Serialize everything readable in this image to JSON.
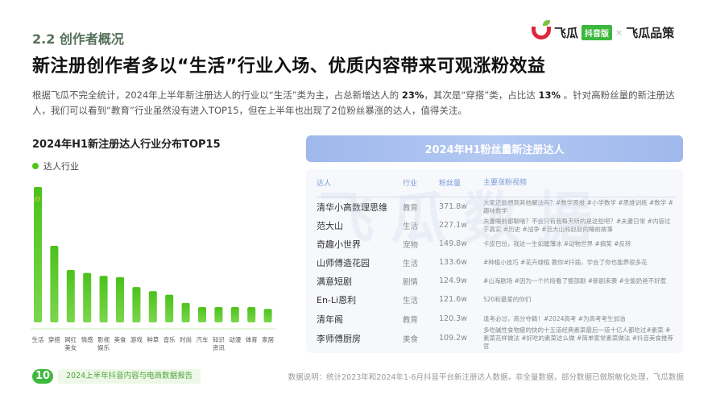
{
  "section": "2.2 创作者概况",
  "title": "新注册创作者多以“生活”行业入场、优质内容带来可观涨粉效益",
  "intro": {
    "p1": "根据飞瓜不完全统计，2024年上半年新注册达人的行业以“生活”类为主，占总新增达人的 ",
    "v1": "23%",
    "p2": "，其次是“穿搭”类，占比达 ",
    "v2": "13%",
    "p3": " 。针对高粉丝量的新注册达人，我们可以看到“教育”行业虽然没有进入TOP15，但在上半年也出现了2位粉丝暴涨的达人，值得关注。"
  },
  "logo": {
    "brand": "飞瓜",
    "tag": "抖音版",
    "sep": "×",
    "partner": "飞瓜品策"
  },
  "chart_data": {
    "type": "bar",
    "title": "2024年H1新注册达人行业分布TOP15",
    "legend": "达人行业",
    "legend_color": "#52c41a",
    "categories": [
      "生活",
      "穿搭",
      "网红\n美女",
      "情感",
      "影视\n娱乐",
      "美食",
      "游戏",
      "种草",
      "音乐",
      "时尚",
      "汽车",
      "知识\n资讯",
      "动漫",
      "体育",
      "家居"
    ],
    "values": [
      23,
      13,
      8.9,
      8.4,
      7.9,
      7.7,
      6.0,
      5.3,
      4.7,
      3.3,
      2.6,
      2.6,
      2.6,
      2.6,
      2.3
    ],
    "axis_break_on_first_bar": true
  },
  "panel": {
    "title": "2024年H1粉丝量新注册达人",
    "watermark": "飞瓜数据",
    "headers": [
      "达人",
      "行业",
      "粉丝量",
      "主要涨粉视频"
    ],
    "rows": [
      [
        "清华小高数理思维",
        "教育",
        "371.8w",
        "大家还能想到其他解法吗？#数学思维 #小学数学 #思维训练 #数学 #趣味数学"
      ],
      [
        "范大山",
        "生活",
        "227.1w",
        "夫妻睡前都聊啥？不会只有我每天听的是这些吧？#夫妻日常 #内容过于真实 #历史 #战争 #范大山和赵赵的睡前故事"
      ],
      [
        "奇趣小世界",
        "宠物",
        "149.8w",
        "卡皮巴拉，我这一生如履薄冰 #动物世界 #搞笑 #反转"
      ],
      [
        "山师傅造花园",
        "生活",
        "133.6w",
        "#种植小技巧 #花卉绿植 教你#扦插，学会了你也能养很多花"
      ],
      [
        "满意短剧",
        "剧情",
        "124.9w",
        "#山海剧场 #因为一个片段看了整部剧 #新剧来袭 #全能奶爸不好惹"
      ],
      [
        "En-Li恩利",
        "生活",
        "121.6w",
        "520和最爱的你们"
      ],
      [
        "清年阁",
        "教育",
        "120.3w",
        "逢考必过，高分夺籍！#2024高考 #为高考考生加油"
      ],
      [
        "李师傅厨房",
        "美食",
        "109.2w",
        "多吃碱性食物瘦的快的十五道经典素菜最后一道十亿人都吃过#素菜 #素菜花样做法 #好吃的素菜这么做 #简单家常素菜做法 #抖音美食推荐官"
      ]
    ]
  },
  "footer": {
    "page": "10",
    "report": "2024上半年抖音内容与电商数据报告",
    "note": "数据说明：统计2023年和2024年1-6月抖音平台新注册达人数据，非全量数据，部分数据已做脱敏化处理，飞瓜数据"
  }
}
